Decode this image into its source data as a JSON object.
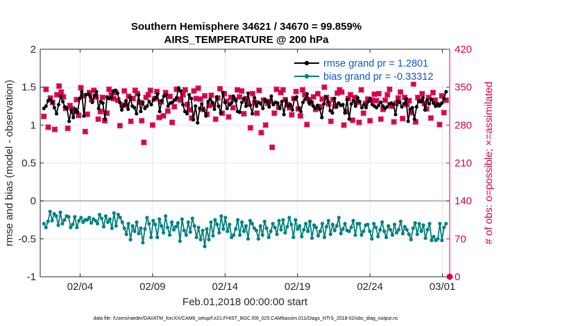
{
  "chart_data": {
    "type": "line",
    "title_line1": "Southern Hemisphere 34621 / 34670 = 99.859%",
    "title_line2": "AIRS_TEMPERATURE @ 200 hPa",
    "xlabel": "Feb.01,2018 00:00:00 start",
    "ylabel_left": "rmse and bias (model - observation)",
    "ylabel_right": "# of obs: o=possible; ×=assimilated",
    "footnote": "data file: /Users/raeder/DAI/ATM_forcXX/CAM6_setup/f.e21.FHIST_BGC.f09_025.CAM6assim.011/Diags_NTrS_2018-02/obs_diag_output.nc",
    "xlim": [
      0.25,
      28.5
    ],
    "ylim_left": [
      -1,
      2
    ],
    "ylim_right": [
      0,
      420
    ],
    "left_ticks": [
      -1,
      -0.5,
      0,
      0.5,
      1,
      1.5,
      2
    ],
    "left_tick_labels": [
      "-1",
      "-0.5",
      "0",
      "0.5",
      "1",
      "1.5",
      "2"
    ],
    "right_ticks": [
      0,
      70,
      140,
      210,
      280,
      350,
      420
    ],
    "right_tick_labels": [
      "0",
      "70",
      "140",
      "210",
      "280",
      "350",
      "420"
    ],
    "x_ticks": [
      3,
      8,
      13,
      18,
      23,
      28
    ],
    "x_tick_labels": [
      "02/04",
      "02/09",
      "02/14",
      "02/19",
      "02/24",
      "03/01"
    ],
    "series": [
      {
        "name": "rmse grand pr = 1.2801",
        "color": "#000000",
        "axis": "left",
        "marker": "circle",
        "values": [
          1.22,
          1.25,
          1.32,
          1.34,
          1.3,
          1.23,
          1.15,
          1.27,
          1.38,
          1.31,
          1.24,
          1.22,
          1.05,
          1.2,
          1.1,
          1.21,
          1.17,
          1.35,
          1.44,
          1.12,
          1.4,
          1.41,
          1.38,
          1.3,
          1.39,
          1.44,
          1.22,
          1.31,
          1.29,
          1.08,
          1.37,
          1.35,
          1.36,
          1.45,
          1.46,
          1.42,
          1.3,
          1.2,
          1.26,
          1.32,
          1.21,
          1.37,
          1.25,
          1.23,
          1.15,
          1.4,
          1.18,
          1.3,
          1.22,
          1.25,
          1.31,
          1.27,
          1.33,
          1.36,
          1.41,
          1.18,
          1.32,
          1.38,
          1.4,
          1.25,
          1.29,
          1.3,
          1.33,
          1.36,
          1.49,
          1.45,
          1.27,
          1.18,
          1.15,
          1.4,
          1.35,
          1.07,
          1.25,
          1.03,
          1.22,
          1.28,
          1.2,
          1.12,
          1.31,
          1.34,
          1.3,
          1.21,
          1.37,
          1.25,
          1.16,
          1.43,
          1.3,
          1.22,
          1.27,
          1.29,
          1.38,
          1.33,
          1.18,
          1.17,
          1.3,
          1.35,
          1.25,
          1.42,
          1.26,
          1.15,
          1.36,
          1.25,
          1.3,
          1.28,
          1.22,
          1.34,
          1.31,
          1.24,
          1.38,
          1.27,
          1.3,
          1.29,
          1.22,
          1.31,
          1.14,
          1.33,
          1.25,
          1.27,
          1.2,
          1.35,
          1.37,
          1.22,
          1.18,
          1.3,
          1.34,
          1.41,
          1.29,
          1.31,
          1.25,
          1.22,
          1.26,
          1.21,
          1.1,
          1.28,
          1.37,
          1.31,
          1.19,
          1.16,
          1.35,
          1.24,
          1.29,
          1.26,
          1.27,
          1.16,
          1.34,
          1.08,
          1.28,
          1.32,
          1.25,
          1.36,
          1.31,
          1.23,
          1.27,
          1.23,
          1.31,
          1.35,
          1.27,
          1.25,
          1.23,
          1.26,
          1.3,
          1.25,
          1.22,
          1.24,
          1.28,
          1.29,
          1.27,
          1.14,
          1.32,
          1.3,
          1.24,
          1.28,
          1.35,
          1.05,
          1.21,
          1.23,
          1.08,
          1.24,
          1.32,
          1.31,
          1.36,
          1.2,
          1.33,
          1.28,
          1.34,
          1.29,
          1.25,
          1.28,
          1.26,
          1.29,
          1.35,
          1.44
        ]
      },
      {
        "name": "bias grand pr = -0.33312",
        "color": "#008080",
        "axis": "left",
        "marker": "circle",
        "values": [
          -0.3,
          -0.35,
          -0.27,
          -0.14,
          -0.26,
          -0.17,
          -0.2,
          -0.32,
          -0.15,
          -0.3,
          -0.25,
          -0.2,
          -0.21,
          -0.35,
          -0.31,
          -0.21,
          -0.35,
          -0.26,
          -0.22,
          -0.28,
          -0.25,
          -0.25,
          -0.22,
          -0.29,
          -0.24,
          -0.26,
          -0.3,
          -0.18,
          -0.23,
          -0.34,
          -0.2,
          -0.28,
          -0.24,
          -0.36,
          -0.16,
          -0.33,
          -0.18,
          -0.22,
          -0.28,
          -0.36,
          -0.44,
          -0.3,
          -0.51,
          -0.33,
          -0.4,
          -0.28,
          -0.43,
          -0.36,
          -0.55,
          -0.37,
          -0.22,
          -0.3,
          -0.48,
          -0.26,
          -0.31,
          -0.48,
          -0.24,
          -0.33,
          -0.42,
          -0.2,
          -0.35,
          -0.45,
          -0.28,
          -0.38,
          -0.34,
          -0.29,
          -0.53,
          -0.24,
          -0.39,
          -0.45,
          -0.28,
          -0.41,
          -0.23,
          -0.33,
          -0.48,
          -0.35,
          -0.51,
          -0.39,
          -0.6,
          -0.37,
          -0.51,
          -0.28,
          -0.46,
          -0.25,
          -0.31,
          -0.42,
          -0.2,
          -0.37,
          -0.22,
          -0.4,
          -0.31,
          -0.48,
          -0.45,
          -0.37,
          -0.25,
          -0.45,
          -0.28,
          -0.4,
          -0.33,
          -0.5,
          -0.26,
          -0.3,
          -0.36,
          -0.39,
          -0.5,
          -0.33,
          -0.45,
          -0.27,
          -0.36,
          -0.48,
          -0.4,
          -0.3,
          -0.35,
          -0.44,
          -0.26,
          -0.38,
          -0.25,
          -0.42,
          -0.34,
          -0.22,
          -0.31,
          -0.48,
          -0.25,
          -0.37,
          -0.33,
          -0.47,
          -0.38,
          -0.3,
          -0.4,
          -0.27,
          -0.49,
          -0.32,
          -0.35,
          -0.46,
          -0.4,
          -0.3,
          -0.48,
          -0.34,
          -0.26,
          -0.44,
          -0.31,
          -0.39,
          -0.33,
          -0.22,
          -0.43,
          -0.37,
          -0.3,
          -0.39,
          -0.4,
          -0.35,
          -0.26,
          -0.45,
          -0.3,
          -0.3,
          -0.45,
          -0.4,
          -0.32,
          -0.31,
          -0.4,
          -0.5,
          -0.3,
          -0.35,
          -0.47,
          -0.38,
          -0.28,
          -0.4,
          -0.48,
          -0.33,
          -0.38,
          -0.45,
          -0.31,
          -0.42,
          -0.38,
          -0.27,
          -0.43,
          -0.34,
          -0.38,
          -0.44,
          -0.51,
          -0.36,
          -0.29,
          -0.44,
          -0.3,
          -0.4,
          -0.32,
          -0.49,
          -0.38,
          -0.3,
          -0.52,
          -0.47,
          -0.52,
          -0.5,
          -0.3,
          -0.52,
          -0.35,
          -0.3
        ]
      },
      {
        "name": "assimilated observations",
        "color": "#d6004f",
        "axis": "right",
        "marker": "x",
        "values": [
          296,
          346,
          276,
          330,
          322,
          272,
          336,
          352,
          341,
          332,
          311,
          274,
          316,
          310,
          305,
          327,
          298,
          349,
          334,
          268,
          300,
          340,
          327,
          344,
          332,
          291,
          305,
          331,
          288,
          302,
          346,
          336,
          329,
          340,
          326,
          279,
          317,
          343,
          317,
          333,
          287,
          329,
          344,
          338,
          322,
          288,
          248,
          331,
          336,
          344,
          280,
          329,
          342,
          294,
          323,
          297,
          340,
          306,
          333,
          285,
          314,
          346,
          328,
          326,
          336,
          345,
          318,
          308,
          293,
          343,
          329,
          348,
          328,
          309,
          334,
          300,
          316,
          335,
          318,
          291,
          330,
          347,
          302,
          338,
          324,
          295,
          331,
          312,
          327,
          345,
          332,
          343,
          301,
          329,
          319,
          275,
          338,
          322,
          302,
          344,
          266,
          326,
          280,
          320,
          324,
          239,
          302,
          346,
          313,
          340,
          345,
          327,
          318,
          312,
          299,
          329,
          342,
          310,
          297,
          345,
          336,
          281,
          327,
          320,
          332,
          309,
          338,
          314,
          328,
          350,
          331,
          319,
          287,
          327,
          315,
          339,
          345,
          341,
          280,
          305,
          329,
          336,
          289,
          331,
          322,
          285,
          345,
          302,
          320,
          328,
          288,
          326,
          337,
          325,
          338,
          291,
          309,
          326,
          336,
          346,
          315,
          286,
          320,
          330,
          341,
          292,
          331,
          318,
          325,
          303,
          356,
          286,
          331,
          325,
          338,
          320,
          310,
          331,
          293,
          340,
          326,
          317,
          281,
          334,
          303,
          326
        ]
      }
    ]
  }
}
